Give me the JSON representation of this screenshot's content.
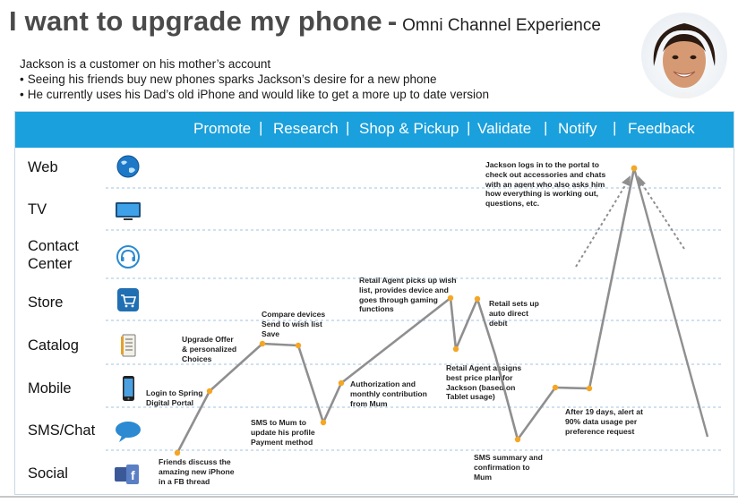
{
  "title": {
    "main": "I want to upgrade my phone",
    "dash": "-",
    "subtitle": "Omni Channel Experience"
  },
  "intro": {
    "line1": "Jackson is a customer on his mother’s account",
    "bullets": [
      "Seeing his friends buy new phones sparks Jackson’s desire for a new phone",
      "He currently uses his Dad’s old iPhone and would like to get a more up to date version"
    ]
  },
  "stages": [
    "Promote",
    "Research",
    "Shop & Pickup",
    "Validate",
    "Notify",
    "Feedback"
  ],
  "separator": "|",
  "channels": [
    {
      "label": "Web",
      "icon": "globe-icon"
    },
    {
      "label": "TV",
      "icon": "tv-icon"
    },
    {
      "label": "Contact Center",
      "icon": "headset-icon"
    },
    {
      "label": "Store",
      "icon": "cart-icon"
    },
    {
      "label": "Catalog",
      "icon": "catalog-icon"
    },
    {
      "label": "Mobile",
      "icon": "smartphone-icon"
    },
    {
      "label": "SMS/Chat",
      "icon": "chat-bubble-icon"
    },
    {
      "label": "Social",
      "icon": "facebook-icon"
    }
  ],
  "annotations": {
    "friends": [
      "Friends discuss the",
      "amazing new iPhone",
      "in a FB thread"
    ],
    "login": [
      "Login to Spring",
      "Digital Portal"
    ],
    "upgrade": [
      "Upgrade Offer",
      "& personalized",
      "Choices"
    ],
    "compare": [
      "Compare devices",
      "Send to wish list",
      "Save"
    ],
    "sms_mum": [
      "SMS to Mum to",
      "update his profile",
      "Payment method"
    ],
    "authorization": [
      "Authorization and",
      "monthly contribution",
      "from Mum"
    ],
    "retail_agent": [
      "Retail Agent picks up wish",
      "list, provides device  and",
      "goes through gaming",
      "functions"
    ],
    "retail_debit": [
      "Retail sets up",
      "auto direct",
      "debit"
    ],
    "price_plan": [
      "Retail Agent assigns",
      "best price plan for",
      "Jackson (based on",
      "Tablet usage)"
    ],
    "sms_summary": [
      "SMS summary and",
      "confirmation to",
      "Mum"
    ],
    "alert": [
      "After 19 days, alert at",
      "90% data usage per",
      "preference request"
    ],
    "portal": [
      "Jackson logs in to the portal to",
      "check out accessories and chats",
      "with an agent who also asks him",
      "how everything is working out,",
      "questions, etc."
    ]
  },
  "colors": {
    "stage_bar": "#1aa0dc",
    "journey_line": "#8f8f8f",
    "point": "#f5a623",
    "dashed_rule": "#9fc3e3",
    "title": "#4a4a4a"
  }
}
